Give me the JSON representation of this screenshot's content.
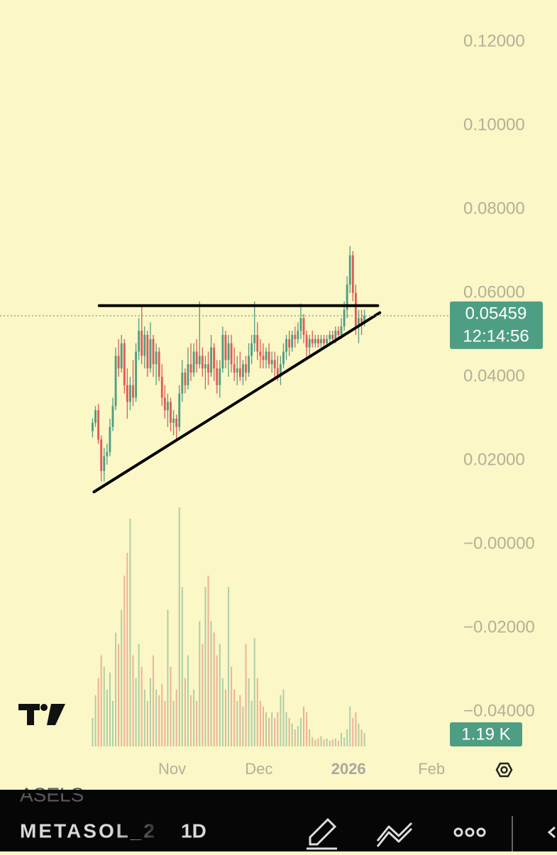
{
  "chart_data": {
    "type": "candlestick",
    "up_color": "#4e9e84",
    "down_color": "#e05a5a",
    "xlim": [
      -32,
      125
    ],
    "ylim": [
      -0.05,
      0.13
    ],
    "yticks": [
      {
        "value": 0.12,
        "label": "0.12000"
      },
      {
        "value": 0.1,
        "label": "0.10000"
      },
      {
        "value": 0.08,
        "label": "0.08000"
      },
      {
        "value": 0.06,
        "label": "0.06000"
      },
      {
        "value": 0.04,
        "label": "0.04000"
      },
      {
        "value": 0.02,
        "label": "0.02000"
      },
      {
        "value": 0,
        "label": "−0.00000"
      },
      {
        "value": -0.02,
        "label": "−0.02000"
      },
      {
        "value": -0.04,
        "label": "−0.04000"
      }
    ],
    "xticks": [
      {
        "value": 27.5,
        "label": "Nov"
      },
      {
        "value": 57.5,
        "label": "Dec"
      },
      {
        "value": 88.5,
        "label": "2026",
        "bold": true
      },
      {
        "value": 117.2,
        "label": "Feb"
      }
    ],
    "ohlc": [
      [
        0.027,
        0.03,
        0.0255,
        0.029
      ],
      [
        0.029,
        0.033,
        0.028,
        0.032
      ],
      [
        0.032,
        0.0335,
        0.024,
        0.025
      ],
      [
        0.025,
        0.026,
        0.015,
        0.0175
      ],
      [
        0.0175,
        0.023,
        0.015,
        0.021
      ],
      [
        0.021,
        0.024,
        0.019,
        0.022
      ],
      [
        0.022,
        0.03,
        0.021,
        0.028
      ],
      [
        0.028,
        0.035,
        0.027,
        0.033
      ],
      [
        0.033,
        0.047,
        0.032,
        0.045
      ],
      [
        0.045,
        0.049,
        0.04,
        0.042
      ],
      [
        0.042,
        0.05,
        0.041,
        0.048
      ],
      [
        0.048,
        0.049,
        0.036,
        0.038
      ],
      [
        0.038,
        0.042,
        0.03,
        0.034
      ],
      [
        0.034,
        0.04,
        0.032,
        0.038
      ],
      [
        0.038,
        0.044,
        0.033,
        0.035
      ],
      [
        0.035,
        0.048,
        0.034,
        0.046
      ],
      [
        0.046,
        0.054,
        0.044,
        0.051
      ],
      [
        0.051,
        0.057,
        0.043,
        0.045
      ],
      [
        0.045,
        0.052,
        0.042,
        0.05
      ],
      [
        0.05,
        0.051,
        0.04,
        0.042
      ],
      [
        0.042,
        0.053,
        0.041,
        0.049
      ],
      [
        0.049,
        0.05,
        0.04,
        0.043
      ],
      [
        0.043,
        0.048,
        0.038,
        0.046
      ],
      [
        0.046,
        0.047,
        0.039,
        0.04
      ],
      [
        0.04,
        0.043,
        0.033,
        0.035
      ],
      [
        0.035,
        0.038,
        0.03,
        0.032
      ],
      [
        0.032,
        0.036,
        0.028,
        0.034
      ],
      [
        0.034,
        0.035,
        0.027,
        0.029
      ],
      [
        0.029,
        0.032,
        0.026,
        0.03
      ],
      [
        0.03,
        0.031,
        0.0245,
        0.028
      ],
      [
        0.028,
        0.038,
        0.027,
        0.036
      ],
      [
        0.036,
        0.044,
        0.034,
        0.041
      ],
      [
        0.041,
        0.042,
        0.036,
        0.038
      ],
      [
        0.038,
        0.047,
        0.037,
        0.043
      ],
      [
        0.043,
        0.048,
        0.039,
        0.041
      ],
      [
        0.041,
        0.048,
        0.04,
        0.046
      ],
      [
        0.046,
        0.049,
        0.041,
        0.043
      ],
      [
        0.043,
        0.058,
        0.042,
        0.045
      ],
      [
        0.045,
        0.047,
        0.04,
        0.042
      ],
      [
        0.042,
        0.045,
        0.037,
        0.043
      ],
      [
        0.043,
        0.046,
        0.038,
        0.041
      ],
      [
        0.041,
        0.05,
        0.04,
        0.047
      ],
      [
        0.047,
        0.048,
        0.039,
        0.042
      ],
      [
        0.042,
        0.044,
        0.036,
        0.038
      ],
      [
        0.038,
        0.044,
        0.035,
        0.042
      ],
      [
        0.042,
        0.052,
        0.041,
        0.05
      ],
      [
        0.05,
        0.051,
        0.042,
        0.044
      ],
      [
        0.044,
        0.05,
        0.04,
        0.048
      ],
      [
        0.048,
        0.05,
        0.041,
        0.043
      ],
      [
        0.043,
        0.047,
        0.039,
        0.041
      ],
      [
        0.041,
        0.045,
        0.038,
        0.042
      ],
      [
        0.042,
        0.046,
        0.039,
        0.04
      ],
      [
        0.04,
        0.044,
        0.038,
        0.043
      ],
      [
        0.043,
        0.045,
        0.039,
        0.041
      ],
      [
        0.041,
        0.048,
        0.04,
        0.045
      ],
      [
        0.045,
        0.05,
        0.043,
        0.048
      ],
      [
        0.048,
        0.058,
        0.046,
        0.05
      ],
      [
        0.05,
        0.053,
        0.044,
        0.046
      ],
      [
        0.046,
        0.049,
        0.042,
        0.045
      ],
      [
        0.045,
        0.048,
        0.042,
        0.044
      ],
      [
        0.044,
        0.047,
        0.042,
        0.046
      ],
      [
        0.046,
        0.048,
        0.042,
        0.043
      ],
      [
        0.043,
        0.046,
        0.041,
        0.044
      ],
      [
        0.044,
        0.046,
        0.04,
        0.042
      ],
      [
        0.042,
        0.045,
        0.039,
        0.04
      ],
      [
        0.04,
        0.045,
        0.038,
        0.043
      ],
      [
        0.043,
        0.048,
        0.042,
        0.046
      ],
      [
        0.046,
        0.05,
        0.044,
        0.049
      ],
      [
        0.049,
        0.051,
        0.045,
        0.047
      ],
      [
        0.047,
        0.051,
        0.046,
        0.05
      ],
      [
        0.05,
        0.052,
        0.047,
        0.049
      ],
      [
        0.049,
        0.053,
        0.048,
        0.051
      ],
      [
        0.051,
        0.0575,
        0.049,
        0.054
      ],
      [
        0.054,
        0.055,
        0.048,
        0.05
      ],
      [
        0.05,
        0.051,
        0.044,
        0.047
      ],
      [
        0.047,
        0.05,
        0.045,
        0.049
      ],
      [
        0.049,
        0.051,
        0.047,
        0.048
      ],
      [
        0.048,
        0.05,
        0.047,
        0.049
      ],
      [
        0.049,
        0.05,
        0.047,
        0.048
      ],
      [
        0.048,
        0.05,
        0.047,
        0.049
      ],
      [
        0.049,
        0.05,
        0.047,
        0.048
      ],
      [
        0.048,
        0.05,
        0.047,
        0.049
      ],
      [
        0.049,
        0.051,
        0.048,
        0.05
      ],
      [
        0.05,
        0.051,
        0.048,
        0.049
      ],
      [
        0.049,
        0.052,
        0.048,
        0.051
      ],
      [
        0.051,
        0.052,
        0.049,
        0.05
      ],
      [
        0.05,
        0.054,
        0.049,
        0.052
      ],
      [
        0.052,
        0.058,
        0.051,
        0.056
      ],
      [
        0.056,
        0.064,
        0.054,
        0.062
      ],
      [
        0.062,
        0.0712,
        0.06,
        0.069
      ],
      [
        0.069,
        0.07,
        0.058,
        0.06
      ],
      [
        0.06,
        0.062,
        0.05,
        0.052
      ],
      [
        0.052,
        0.056,
        0.048,
        0.054
      ],
      [
        0.054,
        0.056,
        0.05,
        0.053
      ],
      [
        0.053,
        0.056,
        0.052,
        0.05459
      ]
    ],
    "volume": [
      2500,
      4500,
      6000,
      8000,
      7000,
      5000,
      6500,
      4000,
      10000,
      9000,
      12000,
      15000,
      17000,
      20000,
      8000,
      6000,
      9000,
      7000,
      5000,
      4000,
      6000,
      8000,
      5000,
      4500,
      5500,
      4000,
      12000,
      7000,
      4000,
      5000,
      21000,
      14000,
      6000,
      8000,
      4500,
      5000,
      4000,
      11000,
      9000,
      14000,
      15000,
      11000,
      10000,
      8000,
      9000,
      6000,
      5000,
      14000,
      7000,
      5000,
      4000,
      4500,
      3500,
      9000,
      6000,
      4000,
      9500,
      6000,
      4000,
      3500,
      3000,
      2500,
      3000,
      2500,
      3000,
      4500,
      5000,
      3000,
      2500,
      2000,
      1500,
      1800,
      2500,
      3500,
      3000,
      1500,
      800,
      600,
      700,
      900,
      600,
      700,
      500,
      600,
      700,
      500,
      1200,
      800,
      1500,
      3500,
      2500,
      3000,
      2000,
      1500,
      1190
    ],
    "last_price": {
      "value": 0.05459,
      "label": "0.05459"
    },
    "countdown": "12:14:56",
    "last_volume": {
      "value": 1190,
      "label": "1.19 K"
    },
    "drawings": [
      {
        "x": [
          2.3,
          98.6
        ],
        "y": [
          0.057,
          0.057
        ]
      },
      {
        "x": [
          0.5,
          99.3
        ],
        "y": [
          0.0125,
          0.0553
        ]
      }
    ]
  },
  "toolbar": {
    "prev_symbol": "ASELS",
    "symbol": "METASOL_2",
    "interval": "1D"
  }
}
